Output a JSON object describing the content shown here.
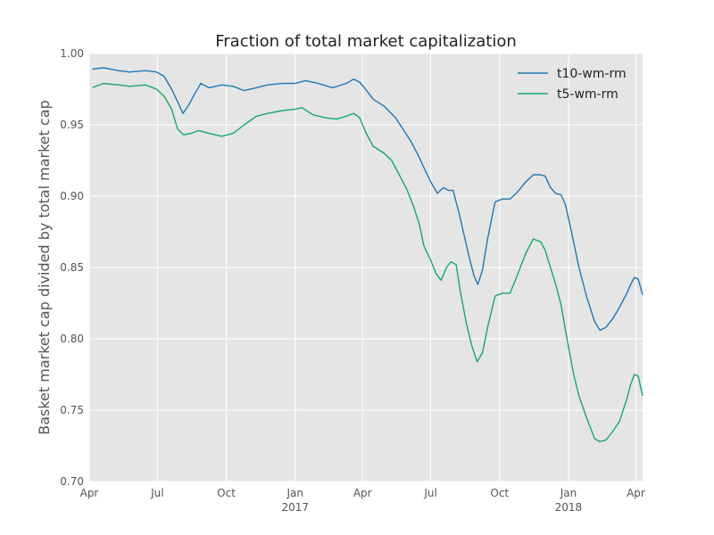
{
  "chart_data": {
    "type": "line",
    "title": "Fraction of total market capitalization",
    "xlabel": "",
    "ylabel": "Basket market cap divided by total market cap",
    "ylim": [
      0.7,
      1.0
    ],
    "yticks": [
      "0.70",
      "0.75",
      "0.80",
      "0.85",
      "0.90",
      "0.95",
      "1.00"
    ],
    "xlim": [
      "2016-04-01",
      "2018-04-10"
    ],
    "xticks": [
      {
        "date": "2016-04-01",
        "label": "Apr",
        "sublabel": ""
      },
      {
        "date": "2016-07-01",
        "label": "Jul",
        "sublabel": ""
      },
      {
        "date": "2016-10-01",
        "label": "Oct",
        "sublabel": ""
      },
      {
        "date": "2017-01-01",
        "label": "Jan",
        "sublabel": "2017"
      },
      {
        "date": "2017-04-01",
        "label": "Apr",
        "sublabel": ""
      },
      {
        "date": "2017-07-01",
        "label": "Jul",
        "sublabel": ""
      },
      {
        "date": "2017-10-01",
        "label": "Oct",
        "sublabel": ""
      },
      {
        "date": "2018-01-01",
        "label": "Jan",
        "sublabel": "2018"
      },
      {
        "date": "2018-04-01",
        "label": "Apr",
        "sublabel": ""
      }
    ],
    "grid": true,
    "legend_position": "top-right",
    "background_color": "#e5e5e5",
    "grid_color": "#ffffff",
    "series": [
      {
        "name": "t10-wm-rm",
        "color": "#1f77b4",
        "points": [
          [
            "2016-04-05",
            0.989
          ],
          [
            "2016-04-20",
            0.99
          ],
          [
            "2016-05-10",
            0.988
          ],
          [
            "2016-05-25",
            0.987
          ],
          [
            "2016-06-15",
            0.988
          ],
          [
            "2016-06-30",
            0.987
          ],
          [
            "2016-07-10",
            0.984
          ],
          [
            "2016-07-20",
            0.975
          ],
          [
            "2016-07-30",
            0.964
          ],
          [
            "2016-08-04",
            0.958
          ],
          [
            "2016-08-12",
            0.964
          ],
          [
            "2016-08-20",
            0.972
          ],
          [
            "2016-08-28",
            0.979
          ],
          [
            "2016-09-08",
            0.976
          ],
          [
            "2016-09-25",
            0.978
          ],
          [
            "2016-10-10",
            0.977
          ],
          [
            "2016-10-25",
            0.974
          ],
          [
            "2016-11-10",
            0.976
          ],
          [
            "2016-11-25",
            0.978
          ],
          [
            "2016-12-15",
            0.979
          ],
          [
            "2017-01-01",
            0.979
          ],
          [
            "2017-01-15",
            0.981
          ],
          [
            "2017-02-01",
            0.979
          ],
          [
            "2017-02-20",
            0.976
          ],
          [
            "2017-03-10",
            0.979
          ],
          [
            "2017-03-20",
            0.982
          ],
          [
            "2017-03-28",
            0.98
          ],
          [
            "2017-04-05",
            0.975
          ],
          [
            "2017-04-15",
            0.968
          ],
          [
            "2017-04-30",
            0.963
          ],
          [
            "2017-05-15",
            0.955
          ],
          [
            "2017-05-25",
            0.947
          ],
          [
            "2017-06-05",
            0.938
          ],
          [
            "2017-06-15",
            0.928
          ],
          [
            "2017-06-22",
            0.92
          ],
          [
            "2017-07-01",
            0.91
          ],
          [
            "2017-07-10",
            0.902
          ],
          [
            "2017-07-18",
            0.906
          ],
          [
            "2017-07-25",
            0.904
          ],
          [
            "2017-07-31",
            0.904
          ],
          [
            "2017-08-07",
            0.89
          ],
          [
            "2017-08-15",
            0.872
          ],
          [
            "2017-08-22",
            0.856
          ],
          [
            "2017-08-28",
            0.844
          ],
          [
            "2017-09-02",
            0.838
          ],
          [
            "2017-09-08",
            0.848
          ],
          [
            "2017-09-15",
            0.87
          ],
          [
            "2017-09-25",
            0.896
          ],
          [
            "2017-10-05",
            0.898
          ],
          [
            "2017-10-15",
            0.898
          ],
          [
            "2017-10-25",
            0.903
          ],
          [
            "2017-11-05",
            0.91
          ],
          [
            "2017-11-15",
            0.915
          ],
          [
            "2017-11-25",
            0.915
          ],
          [
            "2017-12-01",
            0.914
          ],
          [
            "2017-12-08",
            0.906
          ],
          [
            "2017-12-15",
            0.902
          ],
          [
            "2017-12-22",
            0.901
          ],
          [
            "2017-12-28",
            0.894
          ],
          [
            "2018-01-05",
            0.875
          ],
          [
            "2018-01-15",
            0.85
          ],
          [
            "2018-01-25",
            0.83
          ],
          [
            "2018-02-05",
            0.812
          ],
          [
            "2018-02-12",
            0.806
          ],
          [
            "2018-02-20",
            0.808
          ],
          [
            "2018-03-01",
            0.814
          ],
          [
            "2018-03-10",
            0.822
          ],
          [
            "2018-03-20",
            0.832
          ],
          [
            "2018-03-25",
            0.838
          ],
          [
            "2018-03-30",
            0.843
          ],
          [
            "2018-04-04",
            0.842
          ],
          [
            "2018-04-10",
            0.831
          ]
        ]
      },
      {
        "name": "t5-wm-rm",
        "color": "#17a86b",
        "points": [
          [
            "2016-04-05",
            0.976
          ],
          [
            "2016-04-20",
            0.979
          ],
          [
            "2016-05-10",
            0.978
          ],
          [
            "2016-05-25",
            0.977
          ],
          [
            "2016-06-15",
            0.978
          ],
          [
            "2016-06-30",
            0.975
          ],
          [
            "2016-07-10",
            0.97
          ],
          [
            "2016-07-20",
            0.961
          ],
          [
            "2016-07-28",
            0.947
          ],
          [
            "2016-08-05",
            0.943
          ],
          [
            "2016-08-15",
            0.944
          ],
          [
            "2016-08-25",
            0.946
          ],
          [
            "2016-09-08",
            0.944
          ],
          [
            "2016-09-25",
            0.942
          ],
          [
            "2016-10-10",
            0.944
          ],
          [
            "2016-10-25",
            0.95
          ],
          [
            "2016-11-10",
            0.956
          ],
          [
            "2016-11-25",
            0.958
          ],
          [
            "2016-12-15",
            0.96
          ],
          [
            "2017-01-01",
            0.961
          ],
          [
            "2017-01-10",
            0.962
          ],
          [
            "2017-01-25",
            0.957
          ],
          [
            "2017-02-10",
            0.955
          ],
          [
            "2017-02-25",
            0.954
          ],
          [
            "2017-03-10",
            0.956
          ],
          [
            "2017-03-20",
            0.958
          ],
          [
            "2017-03-28",
            0.955
          ],
          [
            "2017-04-05",
            0.945
          ],
          [
            "2017-04-15",
            0.935
          ],
          [
            "2017-04-30",
            0.93
          ],
          [
            "2017-05-10",
            0.925
          ],
          [
            "2017-05-20",
            0.915
          ],
          [
            "2017-05-30",
            0.905
          ],
          [
            "2017-06-08",
            0.893
          ],
          [
            "2017-06-16",
            0.88
          ],
          [
            "2017-06-22",
            0.865
          ],
          [
            "2017-07-01",
            0.855
          ],
          [
            "2017-07-08",
            0.846
          ],
          [
            "2017-07-15",
            0.841
          ],
          [
            "2017-07-22",
            0.85
          ],
          [
            "2017-07-28",
            0.854
          ],
          [
            "2017-08-04",
            0.852
          ],
          [
            "2017-08-10",
            0.832
          ],
          [
            "2017-08-18",
            0.81
          ],
          [
            "2017-08-25",
            0.795
          ],
          [
            "2017-09-01",
            0.784
          ],
          [
            "2017-09-08",
            0.79
          ],
          [
            "2017-09-15",
            0.808
          ],
          [
            "2017-09-25",
            0.83
          ],
          [
            "2017-10-05",
            0.832
          ],
          [
            "2017-10-15",
            0.832
          ],
          [
            "2017-10-25",
            0.845
          ],
          [
            "2017-11-05",
            0.86
          ],
          [
            "2017-11-15",
            0.87
          ],
          [
            "2017-11-25",
            0.868
          ],
          [
            "2017-12-01",
            0.862
          ],
          [
            "2017-12-08",
            0.85
          ],
          [
            "2017-12-15",
            0.838
          ],
          [
            "2017-12-22",
            0.824
          ],
          [
            "2017-12-30",
            0.8
          ],
          [
            "2018-01-08",
            0.775
          ],
          [
            "2018-01-15",
            0.76
          ],
          [
            "2018-01-25",
            0.745
          ],
          [
            "2018-02-05",
            0.73
          ],
          [
            "2018-02-12",
            0.728
          ],
          [
            "2018-02-20",
            0.729
          ],
          [
            "2018-03-01",
            0.735
          ],
          [
            "2018-03-10",
            0.742
          ],
          [
            "2018-03-20",
            0.758
          ],
          [
            "2018-03-25",
            0.768
          ],
          [
            "2018-03-30",
            0.775
          ],
          [
            "2018-04-04",
            0.774
          ],
          [
            "2018-04-10",
            0.76
          ]
        ]
      }
    ]
  }
}
